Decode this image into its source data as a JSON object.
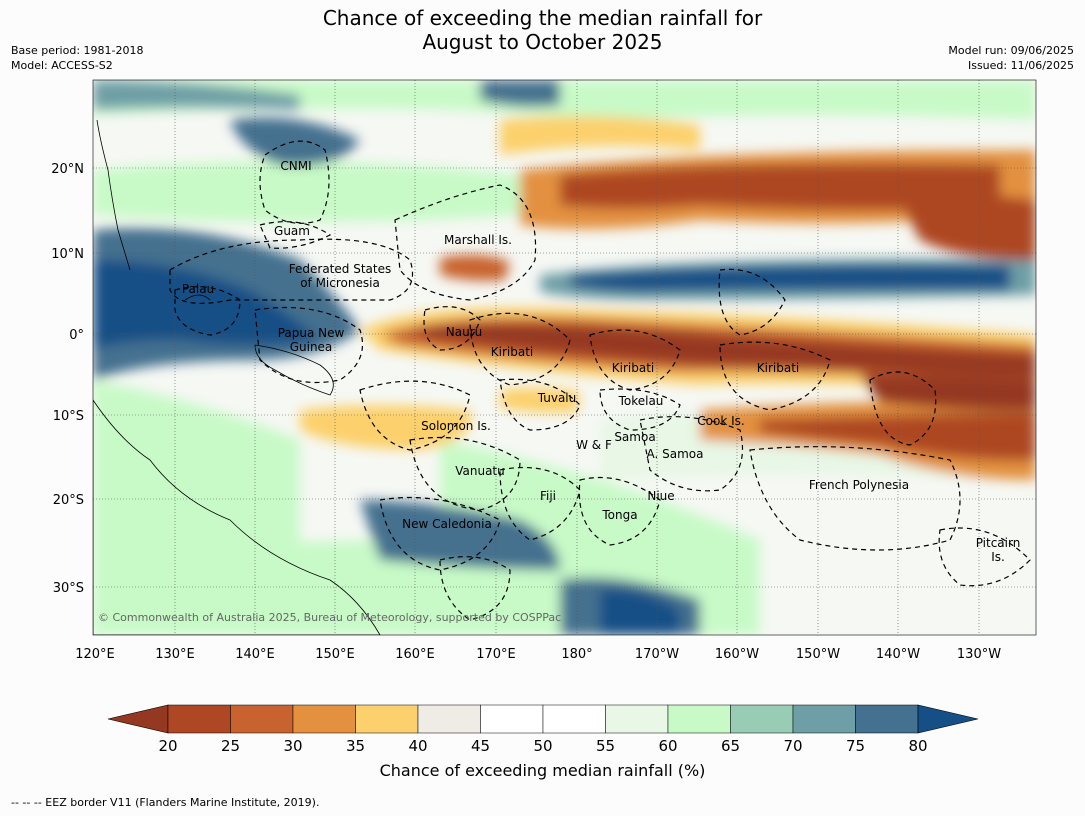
{
  "header": {
    "title_line1": "Chance of exceeding the median rainfall for",
    "title_line2": "August to October 2025",
    "base_period": "Base period: 1981-2018",
    "model": "Model: ACCESS-S2",
    "model_run": "Model run: 09/06/2025",
    "issued": "Issued: 11/06/2025"
  },
  "map": {
    "lon_ticks": [
      "120°E",
      "130°E",
      "140°E",
      "150°E",
      "160°E",
      "170°E",
      "180°",
      "170°W",
      "160°W",
      "150°W",
      "140°W",
      "130°W"
    ],
    "lat_ticks": [
      "20°N",
      "10°N",
      "0°",
      "10°S",
      "20°S",
      "30°S"
    ],
    "regions": [
      {
        "name": "CNMI"
      },
      {
        "name": "Guam"
      },
      {
        "name": "Federated States"
      },
      {
        "name": "of Micronesia"
      },
      {
        "name": "Palau"
      },
      {
        "name": "Papua New"
      },
      {
        "name": "Guinea"
      },
      {
        "name": "Marshall Is."
      },
      {
        "name": "Nauru"
      },
      {
        "name": "Kiribati"
      },
      {
        "name": "Kiribati"
      },
      {
        "name": "Kiribati"
      },
      {
        "name": "Tuvalu"
      },
      {
        "name": "Tokelau"
      },
      {
        "name": "Solomon Is."
      },
      {
        "name": "Samoa"
      },
      {
        "name": "W & F"
      },
      {
        "name": "A. Samoa"
      },
      {
        "name": "Cook Is."
      },
      {
        "name": "Vanuatu"
      },
      {
        "name": "Fiji"
      },
      {
        "name": "Niue"
      },
      {
        "name": "Tonga"
      },
      {
        "name": "French Polynesia"
      },
      {
        "name": "New Caledonia"
      },
      {
        "name": "Pitcairn"
      },
      {
        "name": "Is."
      }
    ],
    "copyright": "© Commonwealth of Australia 2025, Bureau of Meteorology, supported by COSPPac"
  },
  "colorbar": {
    "ticks": [
      "20",
      "25",
      "30",
      "35",
      "40",
      "45",
      "50",
      "55",
      "60",
      "65",
      "70",
      "75",
      "80"
    ],
    "colors": [
      "#ad4724",
      "#c8632f",
      "#e3913f",
      "#fcd06c",
      "#efebe5",
      "#ffffff",
      "#ffffff",
      "#e8f7e6",
      "#c8fac7",
      "#99ccb4",
      "#6e9fa6",
      "#44718f"
    ],
    "under_color": "#953822",
    "over_color": "#154f86",
    "label": "Chance of exceeding median rainfall (%)"
  },
  "footnote": "--  --  -- EEZ border V11 (Flanders Marine Institute, 2019)."
}
